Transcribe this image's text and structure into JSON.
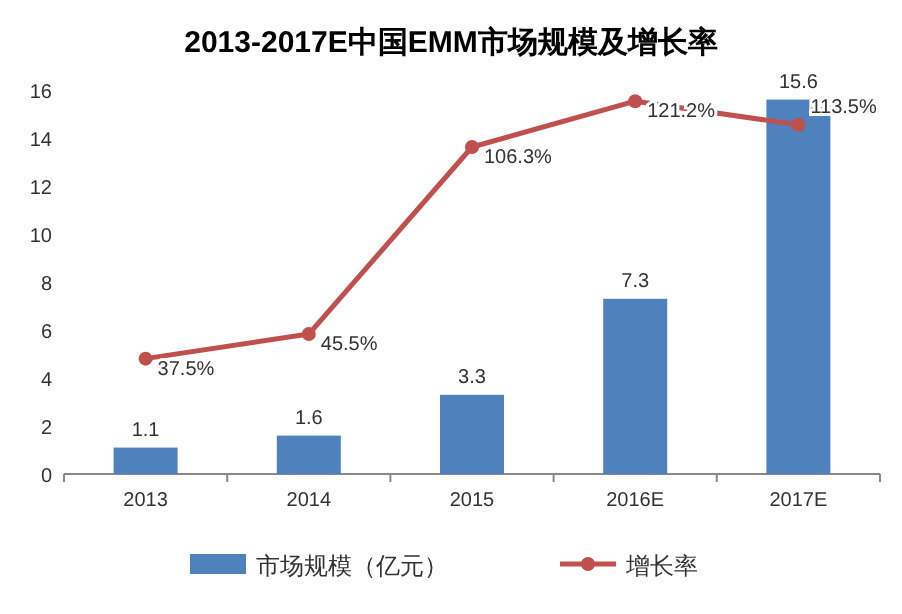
{
  "chart_data": {
    "type": "bar",
    "title": "2013-2017E中国EMM市场规模及增长率",
    "categories": [
      "2013",
      "2014",
      "2015",
      "2016E",
      "2017E"
    ],
    "series": [
      {
        "name": "市场规模（亿元）",
        "color": "#4f81bd",
        "values": [
          1.1,
          1.6,
          3.3,
          7.3,
          15.6
        ],
        "value_labels": [
          "1.1",
          "1.6",
          "3.3",
          "7.3",
          "15.6"
        ]
      },
      {
        "name": "增长率",
        "type": "line",
        "axis": "y2",
        "color": "#c0504d",
        "marker": "circle",
        "values": [
          37.5,
          45.5,
          106.3,
          121.2,
          113.5
        ],
        "value_labels": [
          "37.5%",
          "45.5%",
          "106.3%",
          "121.2%",
          "113.5%"
        ]
      }
    ],
    "ylim": [
      0,
      16
    ],
    "yticks": [
      0,
      2,
      4,
      6,
      8,
      10,
      12,
      14,
      16
    ],
    "legend": "bottom",
    "grid": false
  }
}
